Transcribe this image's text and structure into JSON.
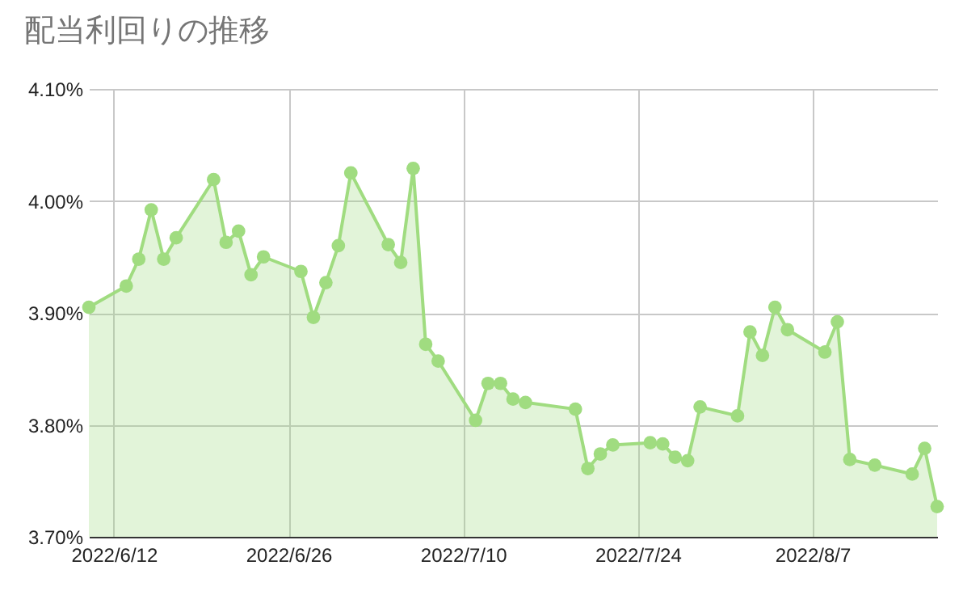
{
  "chart_data": {
    "type": "area",
    "title": "配当利回りの推移",
    "marker": "circle",
    "grid": true,
    "x": [
      "2022-06-10",
      "2022-06-13",
      "2022-06-14",
      "2022-06-15",
      "2022-06-16",
      "2022-06-17",
      "2022-06-20",
      "2022-06-21",
      "2022-06-22",
      "2022-06-23",
      "2022-06-24",
      "2022-06-27",
      "2022-06-28",
      "2022-06-29",
      "2022-06-30",
      "2022-07-01",
      "2022-07-04",
      "2022-07-05",
      "2022-07-06",
      "2022-07-07",
      "2022-07-08",
      "2022-07-11",
      "2022-07-12",
      "2022-07-13",
      "2022-07-14",
      "2022-07-15",
      "2022-07-19",
      "2022-07-20",
      "2022-07-21",
      "2022-07-22",
      "2022-07-25",
      "2022-07-26",
      "2022-07-27",
      "2022-07-28",
      "2022-07-29",
      "2022-08-01",
      "2022-08-02",
      "2022-08-03",
      "2022-08-04",
      "2022-08-05",
      "2022-08-08",
      "2022-08-09",
      "2022-08-10",
      "2022-08-12",
      "2022-08-15",
      "2022-08-16",
      "2022-08-17"
    ],
    "series": [
      {
        "color": "#a0dc80",
        "values": [
          3.905,
          3.924,
          3.948,
          3.992,
          3.948,
          3.967,
          4.019,
          3.963,
          3.973,
          3.934,
          3.95,
          3.937,
          3.896,
          3.927,
          3.96,
          4.025,
          3.961,
          3.945,
          4.029,
          3.872,
          3.857,
          3.804,
          3.837,
          3.837,
          3.823,
          3.82,
          3.814,
          3.761,
          3.774,
          3.782,
          3.784,
          3.783,
          3.771,
          3.768,
          3.816,
          3.808,
          3.883,
          3.862,
          3.905,
          3.885,
          3.865,
          3.892,
          3.769,
          3.764,
          3.756,
          3.779,
          3.727
        ]
      }
    ],
    "xlim": [
      "2022-06-10",
      "2022-08-17"
    ],
    "xticks": [
      {
        "value": "2022-06-12",
        "label": "2022/6/12"
      },
      {
        "value": "2022-06-26",
        "label": "2022/6/26"
      },
      {
        "value": "2022-07-10",
        "label": "2022/7/10"
      },
      {
        "value": "2022-07-24",
        "label": "2022/7/24"
      },
      {
        "value": "2022-08-07",
        "label": "2022/8/7"
      }
    ],
    "ylim": [
      3.7,
      4.1
    ],
    "yticks": [
      {
        "value": 3.7,
        "label": "3.70%"
      },
      {
        "value": 3.8,
        "label": "3.80%"
      },
      {
        "value": 3.9,
        "label": "3.90%"
      },
      {
        "value": 4.0,
        "label": "4.00%"
      },
      {
        "value": 4.1,
        "label": "4.10%"
      }
    ]
  }
}
